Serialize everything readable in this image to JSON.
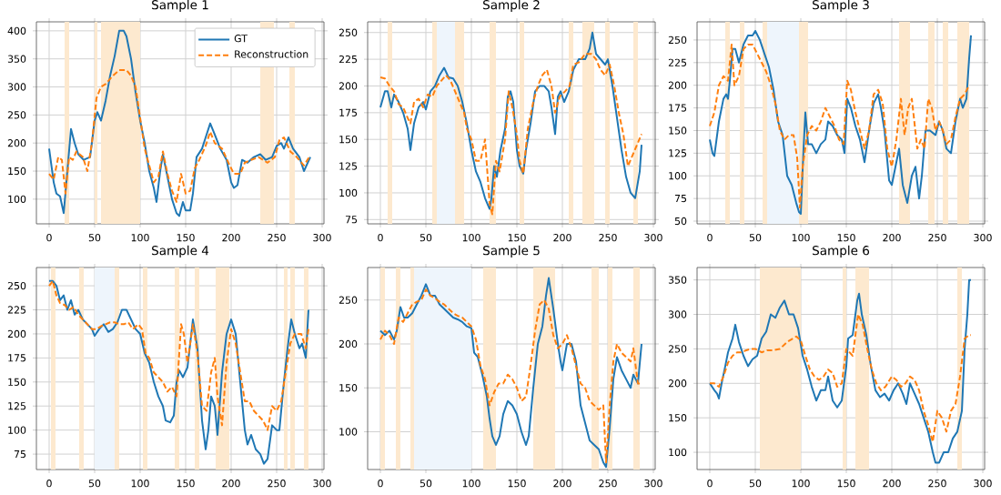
{
  "chart_data": [
    {
      "type": "line",
      "title": "Sample 1",
      "xlim": [
        -14,
        302
      ],
      "ylim": [
        56,
        416
      ],
      "xticks": [
        0,
        50,
        100,
        150,
        200,
        250,
        300
      ],
      "yticks": [
        100,
        150,
        200,
        250,
        300,
        350,
        400
      ],
      "grid": true,
      "legend": "top right",
      "bands": [
        {
          "axis": "x",
          "from": 17,
          "to": 22,
          "color": "#fde9cf"
        },
        {
          "axis": "x",
          "from": 50,
          "to": 53,
          "color": "#fde9cf"
        },
        {
          "axis": "x",
          "from": 57,
          "to": 100,
          "color": "#fde9cf"
        },
        {
          "axis": "x",
          "from": 232,
          "to": 247,
          "color": "#fde9cf"
        },
        {
          "axis": "x",
          "from": 264,
          "to": 270,
          "color": "#fde9cf"
        }
      ],
      "series": [
        {
          "name": "GT",
          "color": "#1f77b4",
          "line_style": "solid",
          "x": [
            0,
            5,
            8,
            12,
            16,
            20,
            24,
            28,
            32,
            38,
            45,
            50,
            53,
            57,
            62,
            67,
            72,
            77,
            82,
            85,
            90,
            95,
            100,
            105,
            110,
            115,
            118,
            122,
            125,
            130,
            135,
            140,
            143,
            147,
            150,
            155,
            158,
            162,
            168,
            172,
            177,
            182,
            188,
            195,
            200,
            203,
            207,
            212,
            218,
            225,
            232,
            238,
            245,
            250,
            255,
            258,
            263,
            268,
            275,
            280,
            287
          ],
          "values": [
            190,
            130,
            110,
            105,
            75,
            150,
            225,
            200,
            180,
            170,
            175,
            240,
            255,
            240,
            275,
            320,
            355,
            400,
            400,
            390,
            350,
            290,
            240,
            200,
            150,
            120,
            95,
            150,
            180,
            140,
            100,
            75,
            70,
            95,
            80,
            80,
            110,
            175,
            190,
            210,
            235,
            215,
            190,
            170,
            130,
            120,
            125,
            170,
            165,
            175,
            180,
            170,
            175,
            195,
            200,
            190,
            210,
            190,
            175,
            150,
            175
          ]
        },
        {
          "name": "Reconstruction",
          "color": "#ff7f0e",
          "line_style": "dashed",
          "x": [
            0,
            5,
            10,
            14,
            18,
            22,
            26,
            30,
            37,
            42,
            47,
            52,
            57,
            62,
            70,
            77,
            85,
            90,
            95,
            100,
            105,
            110,
            115,
            120,
            125,
            130,
            135,
            140,
            145,
            150,
            155,
            160,
            165,
            172,
            177,
            182,
            190,
            197,
            203,
            210,
            215,
            222,
            230,
            240,
            248,
            253,
            258,
            265,
            272,
            280,
            287
          ],
          "values": [
            145,
            135,
            175,
            170,
            110,
            175,
            170,
            185,
            175,
            150,
            200,
            280,
            300,
            305,
            320,
            330,
            330,
            320,
            300,
            245,
            190,
            160,
            130,
            140,
            185,
            145,
            115,
            95,
            145,
            110,
            115,
            155,
            170,
            195,
            220,
            200,
            190,
            165,
            145,
            145,
            165,
            170,
            175,
            165,
            175,
            205,
            210,
            185,
            175,
            160,
            178
          ]
        }
      ]
    },
    {
      "type": "line",
      "title": "Sample 2",
      "xlim": [
        -14,
        302
      ],
      "ylim": [
        71,
        260
      ],
      "xticks": [
        0,
        50,
        100,
        150,
        200,
        250,
        300
      ],
      "yticks": [
        75,
        100,
        125,
        150,
        175,
        200,
        225,
        250
      ],
      "grid": true,
      "bands": [
        {
          "axis": "x",
          "from": 8,
          "to": 13,
          "color": "#fde9cf"
        },
        {
          "axis": "x",
          "from": 57,
          "to": 62,
          "color": "#fde9cf"
        },
        {
          "axis": "x",
          "from": 62,
          "to": 82,
          "color": "#eef5fc"
        },
        {
          "axis": "x",
          "from": 82,
          "to": 92,
          "color": "#fde9cf"
        },
        {
          "axis": "x",
          "from": 120,
          "to": 127,
          "color": "#fde9cf"
        },
        {
          "axis": "x",
          "from": 153,
          "to": 158,
          "color": "#fde9cf"
        },
        {
          "axis": "x",
          "from": 207,
          "to": 212,
          "color": "#fde9cf"
        },
        {
          "axis": "x",
          "from": 222,
          "to": 235,
          "color": "#fde9cf"
        },
        {
          "axis": "x",
          "from": 247,
          "to": 252,
          "color": "#fde9cf"
        },
        {
          "axis": "x",
          "from": 278,
          "to": 283,
          "color": "#fde9cf"
        }
      ],
      "series": [
        {
          "color": "#1f77b4",
          "line_style": "solid",
          "x": [
            0,
            5,
            8,
            12,
            15,
            20,
            25,
            30,
            33,
            37,
            42,
            47,
            50,
            55,
            60,
            65,
            70,
            75,
            80,
            85,
            90,
            95,
            100,
            105,
            110,
            115,
            120,
            122,
            125,
            128,
            132,
            137,
            140,
            143,
            146,
            150,
            153,
            157,
            160,
            165,
            170,
            175,
            180,
            185,
            188,
            192,
            195,
            198,
            202,
            207,
            212,
            218,
            225,
            230,
            233,
            237,
            242,
            247,
            250,
            255,
            260,
            265,
            270,
            275,
            280,
            285,
            287
          ],
          "values": [
            180,
            195,
            195,
            180,
            192,
            185,
            175,
            160,
            140,
            165,
            180,
            185,
            178,
            195,
            200,
            210,
            217,
            208,
            207,
            200,
            185,
            165,
            140,
            120,
            110,
            95,
            85,
            95,
            125,
            115,
            140,
            160,
            190,
            195,
            185,
            140,
            125,
            118,
            140,
            165,
            195,
            200,
            200,
            195,
            180,
            155,
            190,
            195,
            185,
            195,
            215,
            225,
            225,
            235,
            250,
            230,
            225,
            220,
            225,
            200,
            170,
            140,
            115,
            100,
            95,
            120,
            145
          ]
        },
        {
          "color": "#ff7f0e",
          "line_style": "dashed",
          "x": [
            0,
            5,
            10,
            15,
            20,
            25,
            30,
            33,
            37,
            42,
            47,
            52,
            57,
            62,
            67,
            72,
            77,
            82,
            87,
            92,
            95,
            100,
            105,
            110,
            115,
            120,
            123,
            127,
            131,
            137,
            141,
            145,
            150,
            153,
            157,
            162,
            168,
            173,
            178,
            183,
            188,
            192,
            197,
            203,
            208,
            212,
            218,
            225,
            232,
            237,
            242,
            247,
            252,
            257,
            262,
            267,
            272,
            277,
            282,
            287
          ],
          "values": [
            208,
            207,
            200,
            195,
            183,
            180,
            170,
            165,
            185,
            188,
            180,
            192,
            190,
            200,
            205,
            210,
            205,
            195,
            185,
            175,
            160,
            150,
            130,
            130,
            150,
            90,
            80,
            130,
            120,
            150,
            195,
            180,
            155,
            130,
            118,
            160,
            185,
            200,
            210,
            215,
            200,
            175,
            190,
            195,
            200,
            220,
            222,
            230,
            230,
            225,
            215,
            210,
            220,
            200,
            175,
            155,
            125,
            135,
            145,
            155
          ]
        }
      ]
    },
    {
      "type": "line",
      "title": "Sample 3",
      "xlim": [
        -14,
        302
      ],
      "ylim": [
        47,
        270
      ],
      "xticks": [
        0,
        50,
        100,
        150,
        200,
        250,
        300
      ],
      "yticks": [
        50,
        75,
        100,
        125,
        150,
        175,
        200,
        225,
        250
      ],
      "grid": true,
      "bands": [
        {
          "axis": "x",
          "from": 17,
          "to": 22,
          "color": "#fde9cf"
        },
        {
          "axis": "x",
          "from": 33,
          "to": 38,
          "color": "#fde9cf"
        },
        {
          "axis": "x",
          "from": 58,
          "to": 63,
          "color": "#fde9cf"
        },
        {
          "axis": "x",
          "from": 63,
          "to": 98,
          "color": "#eef5fc"
        },
        {
          "axis": "x",
          "from": 98,
          "to": 108,
          "color": "#fde9cf"
        },
        {
          "axis": "x",
          "from": 208,
          "to": 220,
          "color": "#fde9cf"
        },
        {
          "axis": "x",
          "from": 240,
          "to": 247,
          "color": "#fde9cf"
        },
        {
          "axis": "x",
          "from": 256,
          "to": 262,
          "color": "#fde9cf"
        },
        {
          "axis": "x",
          "from": 272,
          "to": 285,
          "color": "#fde9cf"
        }
      ],
      "series": [
        {
          "color": "#1f77b4",
          "line_style": "solid",
          "x": [
            0,
            3,
            5,
            10,
            15,
            18,
            20,
            22,
            25,
            28,
            32,
            37,
            42,
            47,
            50,
            55,
            60,
            65,
            70,
            75,
            80,
            85,
            90,
            95,
            98,
            100,
            103,
            105,
            108,
            112,
            117,
            122,
            127,
            130,
            135,
            140,
            145,
            148,
            151,
            155,
            160,
            165,
            170,
            175,
            180,
            185,
            188,
            192,
            197,
            200,
            205,
            208,
            212,
            217,
            222,
            226,
            230,
            233,
            237,
            242,
            248,
            252,
            256,
            260,
            265,
            270,
            275,
            278,
            282,
            285,
            287
          ],
          "values": [
            140,
            125,
            122,
            160,
            185,
            190,
            185,
            205,
            240,
            240,
            225,
            245,
            255,
            255,
            260,
            250,
            235,
            220,
            195,
            160,
            145,
            100,
            90,
            70,
            60,
            58,
            130,
            170,
            135,
            135,
            125,
            135,
            140,
            160,
            155,
            145,
            140,
            125,
            185,
            175,
            155,
            140,
            115,
            150,
            180,
            190,
            175,
            150,
            95,
            90,
            115,
            130,
            90,
            70,
            100,
            110,
            75,
            100,
            150,
            150,
            145,
            160,
            150,
            130,
            125,
            160,
            185,
            175,
            185,
            230,
            255
          ]
        },
        {
          "color": "#ff7f0e",
          "line_style": "dashed",
          "x": [
            0,
            5,
            10,
            15,
            20,
            24,
            27,
            32,
            37,
            42,
            47,
            52,
            57,
            62,
            67,
            72,
            77,
            82,
            87,
            92,
            96,
            99,
            102,
            107,
            112,
            117,
            122,
            127,
            132,
            137,
            142,
            147,
            151,
            155,
            160,
            165,
            170,
            175,
            180,
            185,
            190,
            195,
            200,
            205,
            210,
            214,
            218,
            222,
            228,
            232,
            236,
            240,
            244,
            248,
            252,
            256,
            260,
            265,
            270,
            275,
            280,
            285
          ],
          "values": [
            155,
            170,
            200,
            210,
            205,
            245,
            200,
            210,
            240,
            245,
            245,
            235,
            225,
            215,
            200,
            180,
            150,
            140,
            145,
            145,
            120,
            65,
            110,
            145,
            155,
            150,
            160,
            175,
            165,
            155,
            140,
            135,
            205,
            195,
            170,
            150,
            130,
            150,
            190,
            195,
            180,
            130,
            110,
            140,
            185,
            145,
            175,
            185,
            130,
            140,
            130,
            185,
            175,
            150,
            160,
            150,
            135,
            140,
            165,
            185,
            190,
            200
          ]
        }
      ]
    },
    {
      "type": "line",
      "title": "Sample 4",
      "xlim": [
        -14,
        302
      ],
      "ylim": [
        59,
        269
      ],
      "xticks": [
        0,
        50,
        100,
        150,
        200,
        250,
        300
      ],
      "yticks": [
        75,
        100,
        125,
        150,
        175,
        200,
        225,
        250
      ],
      "grid": true,
      "bands": [
        {
          "axis": "x",
          "from": 2,
          "to": 7,
          "color": "#fde9cf"
        },
        {
          "axis": "x",
          "from": 33,
          "to": 38,
          "color": "#fde9cf"
        },
        {
          "axis": "x",
          "from": 50,
          "to": 72,
          "color": "#eef5fc"
        },
        {
          "axis": "x",
          "from": 72,
          "to": 77,
          "color": "#fde9cf"
        },
        {
          "axis": "x",
          "from": 103,
          "to": 108,
          "color": "#fde9cf"
        },
        {
          "axis": "x",
          "from": 138,
          "to": 143,
          "color": "#fde9cf"
        },
        {
          "axis": "x",
          "from": 160,
          "to": 165,
          "color": "#fde9cf"
        },
        {
          "axis": "x",
          "from": 183,
          "to": 198,
          "color": "#fde9cf"
        },
        {
          "axis": "x",
          "from": 258,
          "to": 262,
          "color": "#fde9cf"
        },
        {
          "axis": "x",
          "from": 265,
          "to": 270,
          "color": "#fde9cf"
        },
        {
          "axis": "x",
          "from": 280,
          "to": 285,
          "color": "#fde9cf"
        }
      ],
      "series": [
        {
          "color": "#1f77b4",
          "line_style": "solid",
          "x": [
            0,
            4,
            8,
            12,
            16,
            20,
            24,
            28,
            32,
            37,
            42,
            47,
            50,
            55,
            60,
            65,
            70,
            75,
            80,
            85,
            90,
            95,
            100,
            105,
            110,
            115,
            120,
            125,
            128,
            133,
            137,
            140,
            143,
            147,
            152,
            158,
            163,
            168,
            172,
            175,
            178,
            182,
            185,
            190,
            195,
            200,
            205,
            210,
            215,
            218,
            222,
            227,
            232,
            236,
            240,
            245,
            250,
            253,
            258,
            262,
            266,
            270,
            275,
            278,
            282,
            285
          ],
          "values": [
            255,
            255,
            250,
            235,
            240,
            225,
            235,
            220,
            225,
            215,
            210,
            205,
            198,
            205,
            210,
            202,
            205,
            212,
            225,
            225,
            215,
            205,
            200,
            180,
            170,
            150,
            135,
            125,
            110,
            108,
            115,
            150,
            162,
            155,
            165,
            215,
            185,
            110,
            80,
            100,
            135,
            125,
            95,
            160,
            200,
            215,
            200,
            150,
            100,
            85,
            95,
            80,
            75,
            65,
            70,
            105,
            100,
            100,
            150,
            185,
            215,
            200,
            185,
            190,
            175,
            225
          ]
        },
        {
          "color": "#ff7f0e",
          "line_style": "dashed",
          "x": [
            0,
            4,
            8,
            12,
            17,
            22,
            27,
            32,
            37,
            42,
            47,
            52,
            57,
            62,
            67,
            72,
            77,
            82,
            87,
            92,
            98,
            102,
            106,
            110,
            115,
            120,
            125,
            130,
            135,
            140,
            145,
            148,
            152,
            158,
            163,
            168,
            173,
            178,
            182,
            185,
            190,
            195,
            200,
            205,
            210,
            215,
            220,
            225,
            230,
            235,
            240,
            245,
            250,
            255,
            260,
            265,
            270,
            277,
            282,
            285
          ],
          "values": [
            250,
            255,
            240,
            232,
            230,
            225,
            228,
            220,
            215,
            210,
            205,
            205,
            208,
            210,
            212,
            212,
            210,
            210,
            212,
            205,
            210,
            205,
            180,
            175,
            160,
            155,
            150,
            140,
            145,
            135,
            210,
            200,
            170,
            210,
            180,
            125,
            120,
            160,
            175,
            135,
            105,
            170,
            205,
            190,
            160,
            130,
            130,
            120,
            115,
            110,
            100,
            125,
            120,
            130,
            160,
            190,
            200,
            200,
            185,
            205
          ]
        }
      ]
    },
    {
      "type": "line",
      "title": "Sample 5",
      "xlim": [
        -14,
        302
      ],
      "ylim": [
        57,
        287
      ],
      "xticks": [
        0,
        50,
        100,
        150,
        200,
        250,
        300
      ],
      "yticks": [
        100,
        150,
        200,
        250
      ],
      "grid": true,
      "bands": [
        {
          "axis": "x",
          "from": 0,
          "to": 5,
          "color": "#fde9cf"
        },
        {
          "axis": "x",
          "from": 17,
          "to": 22,
          "color": "#fde9cf"
        },
        {
          "axis": "x",
          "from": 33,
          "to": 37,
          "color": "#fde9cf"
        },
        {
          "axis": "x",
          "from": 37,
          "to": 100,
          "color": "#eef5fc"
        },
        {
          "axis": "x",
          "from": 113,
          "to": 127,
          "color": "#fde9cf"
        },
        {
          "axis": "x",
          "from": 168,
          "to": 192,
          "color": "#fde9cf"
        },
        {
          "axis": "x",
          "from": 232,
          "to": 240,
          "color": "#fde9cf"
        },
        {
          "axis": "x",
          "from": 250,
          "to": 255,
          "color": "#fde9cf"
        },
        {
          "axis": "x",
          "from": 278,
          "to": 285,
          "color": "#fde9cf"
        }
      ],
      "series": [
        {
          "color": "#1f77b4",
          "line_style": "solid",
          "x": [
            0,
            5,
            10,
            15,
            18,
            22,
            26,
            30,
            35,
            40,
            45,
            50,
            55,
            60,
            65,
            70,
            75,
            80,
            85,
            90,
            95,
            100,
            103,
            107,
            112,
            117,
            120,
            123,
            127,
            131,
            135,
            140,
            145,
            150,
            155,
            160,
            163,
            168,
            173,
            178,
            182,
            185,
            190,
            195,
            198,
            200,
            205,
            210,
            215,
            220,
            225,
            230,
            235,
            240,
            245,
            248,
            252,
            256,
            260,
            265,
            270,
            275,
            278,
            283,
            287
          ],
          "values": [
            215,
            210,
            215,
            205,
            215,
            242,
            230,
            230,
            235,
            245,
            255,
            268,
            255,
            255,
            245,
            240,
            235,
            230,
            228,
            225,
            220,
            218,
            190,
            185,
            165,
            140,
            115,
            95,
            85,
            95,
            120,
            135,
            130,
            120,
            100,
            85,
            95,
            150,
            200,
            220,
            255,
            275,
            240,
            200,
            180,
            170,
            200,
            200,
            180,
            130,
            110,
            90,
            85,
            80,
            65,
            60,
            105,
            160,
            185,
            170,
            160,
            150,
            165,
            155,
            200
          ]
        },
        {
          "color": "#ff7f0e",
          "line_style": "dashed",
          "x": [
            0,
            5,
            10,
            15,
            20,
            25,
            30,
            35,
            40,
            45,
            50,
            55,
            60,
            65,
            70,
            75,
            80,
            85,
            90,
            95,
            100,
            105,
            110,
            115,
            120,
            125,
            130,
            135,
            140,
            145,
            150,
            155,
            160,
            165,
            170,
            175,
            180,
            185,
            190,
            195,
            200,
            205,
            210,
            215,
            220,
            225,
            230,
            235,
            240,
            245,
            248,
            252,
            256,
            260,
            265,
            270,
            275,
            278,
            283,
            287
          ],
          "values": [
            205,
            215,
            210,
            200,
            230,
            225,
            235,
            245,
            248,
            250,
            262,
            255,
            252,
            248,
            245,
            240,
            235,
            232,
            230,
            225,
            220,
            205,
            175,
            160,
            130,
            145,
            155,
            155,
            165,
            160,
            150,
            135,
            140,
            175,
            215,
            245,
            250,
            240,
            210,
            195,
            200,
            210,
            195,
            175,
            155,
            150,
            135,
            130,
            125,
            130,
            65,
            130,
            180,
            200,
            190,
            185,
            180,
            195,
            155,
            155
          ]
        }
      ]
    },
    {
      "type": "line",
      "title": "Sample 6",
      "xlim": [
        -14,
        302
      ],
      "ylim": [
        75,
        368
      ],
      "xticks": [
        0,
        50,
        100,
        150,
        200,
        250,
        300
      ],
      "yticks": [
        100,
        150,
        200,
        250,
        300,
        350
      ],
      "grid": true,
      "bands": [
        {
          "axis": "x",
          "from": 55,
          "to": 100,
          "color": "#fde9cf"
        },
        {
          "axis": "x",
          "from": 146,
          "to": 150,
          "color": "#fde9cf"
        },
        {
          "axis": "x",
          "from": 160,
          "to": 175,
          "color": "#fde9cf"
        },
        {
          "axis": "x",
          "from": 272,
          "to": 277,
          "color": "#fde9cf"
        }
      ],
      "series": [
        {
          "color": "#1f77b4",
          "line_style": "solid",
          "x": [
            0,
            5,
            8,
            10,
            13,
            17,
            20,
            25,
            28,
            32,
            37,
            42,
            47,
            52,
            57,
            62,
            67,
            72,
            77,
            82,
            87,
            92,
            97,
            102,
            107,
            112,
            117,
            122,
            127,
            130,
            135,
            140,
            145,
            150,
            152,
            157,
            162,
            164,
            167,
            172,
            177,
            182,
            187,
            192,
            197,
            202,
            207,
            212,
            216,
            220,
            225,
            230,
            235,
            240,
            245,
            248,
            252,
            257,
            262,
            267,
            272,
            277,
            280,
            283,
            285,
            287
          ],
          "values": [
            200,
            190,
            185,
            178,
            200,
            225,
            245,
            265,
            285,
            260,
            240,
            225,
            235,
            240,
            265,
            275,
            300,
            295,
            310,
            320,
            300,
            300,
            280,
            240,
            220,
            195,
            175,
            190,
            190,
            210,
            175,
            165,
            175,
            225,
            265,
            270,
            320,
            330,
            300,
            270,
            225,
            190,
            180,
            185,
            175,
            190,
            200,
            185,
            170,
            200,
            185,
            170,
            150,
            130,
            100,
            85,
            85,
            100,
            100,
            120,
            130,
            160,
            250,
            300,
            350,
            350
          ]
        },
        {
          "color": "#ff7f0e",
          "line_style": "dashed",
          "x": [
            0,
            5,
            10,
            15,
            20,
            25,
            30,
            35,
            40,
            45,
            50,
            57,
            63,
            70,
            77,
            85,
            95,
            100,
            105,
            110,
            115,
            120,
            125,
            130,
            135,
            140,
            145,
            150,
            157,
            163,
            168,
            173,
            178,
            183,
            188,
            193,
            200,
            205,
            210,
            215,
            220,
            225,
            230,
            235,
            240,
            245,
            250,
            255,
            260,
            265,
            270,
            275,
            280,
            285,
            287
          ],
          "values": [
            200,
            200,
            195,
            210,
            230,
            240,
            245,
            245,
            248,
            250,
            250,
            245,
            248,
            248,
            250,
            260,
            268,
            262,
            240,
            220,
            210,
            205,
            210,
            220,
            215,
            195,
            200,
            250,
            240,
            300,
            285,
            250,
            220,
            200,
            190,
            195,
            210,
            205,
            195,
            200,
            210,
            205,
            190,
            160,
            140,
            115,
            160,
            150,
            130,
            160,
            170,
            210,
            265,
            270,
            270
          ]
        }
      ]
    }
  ]
}
